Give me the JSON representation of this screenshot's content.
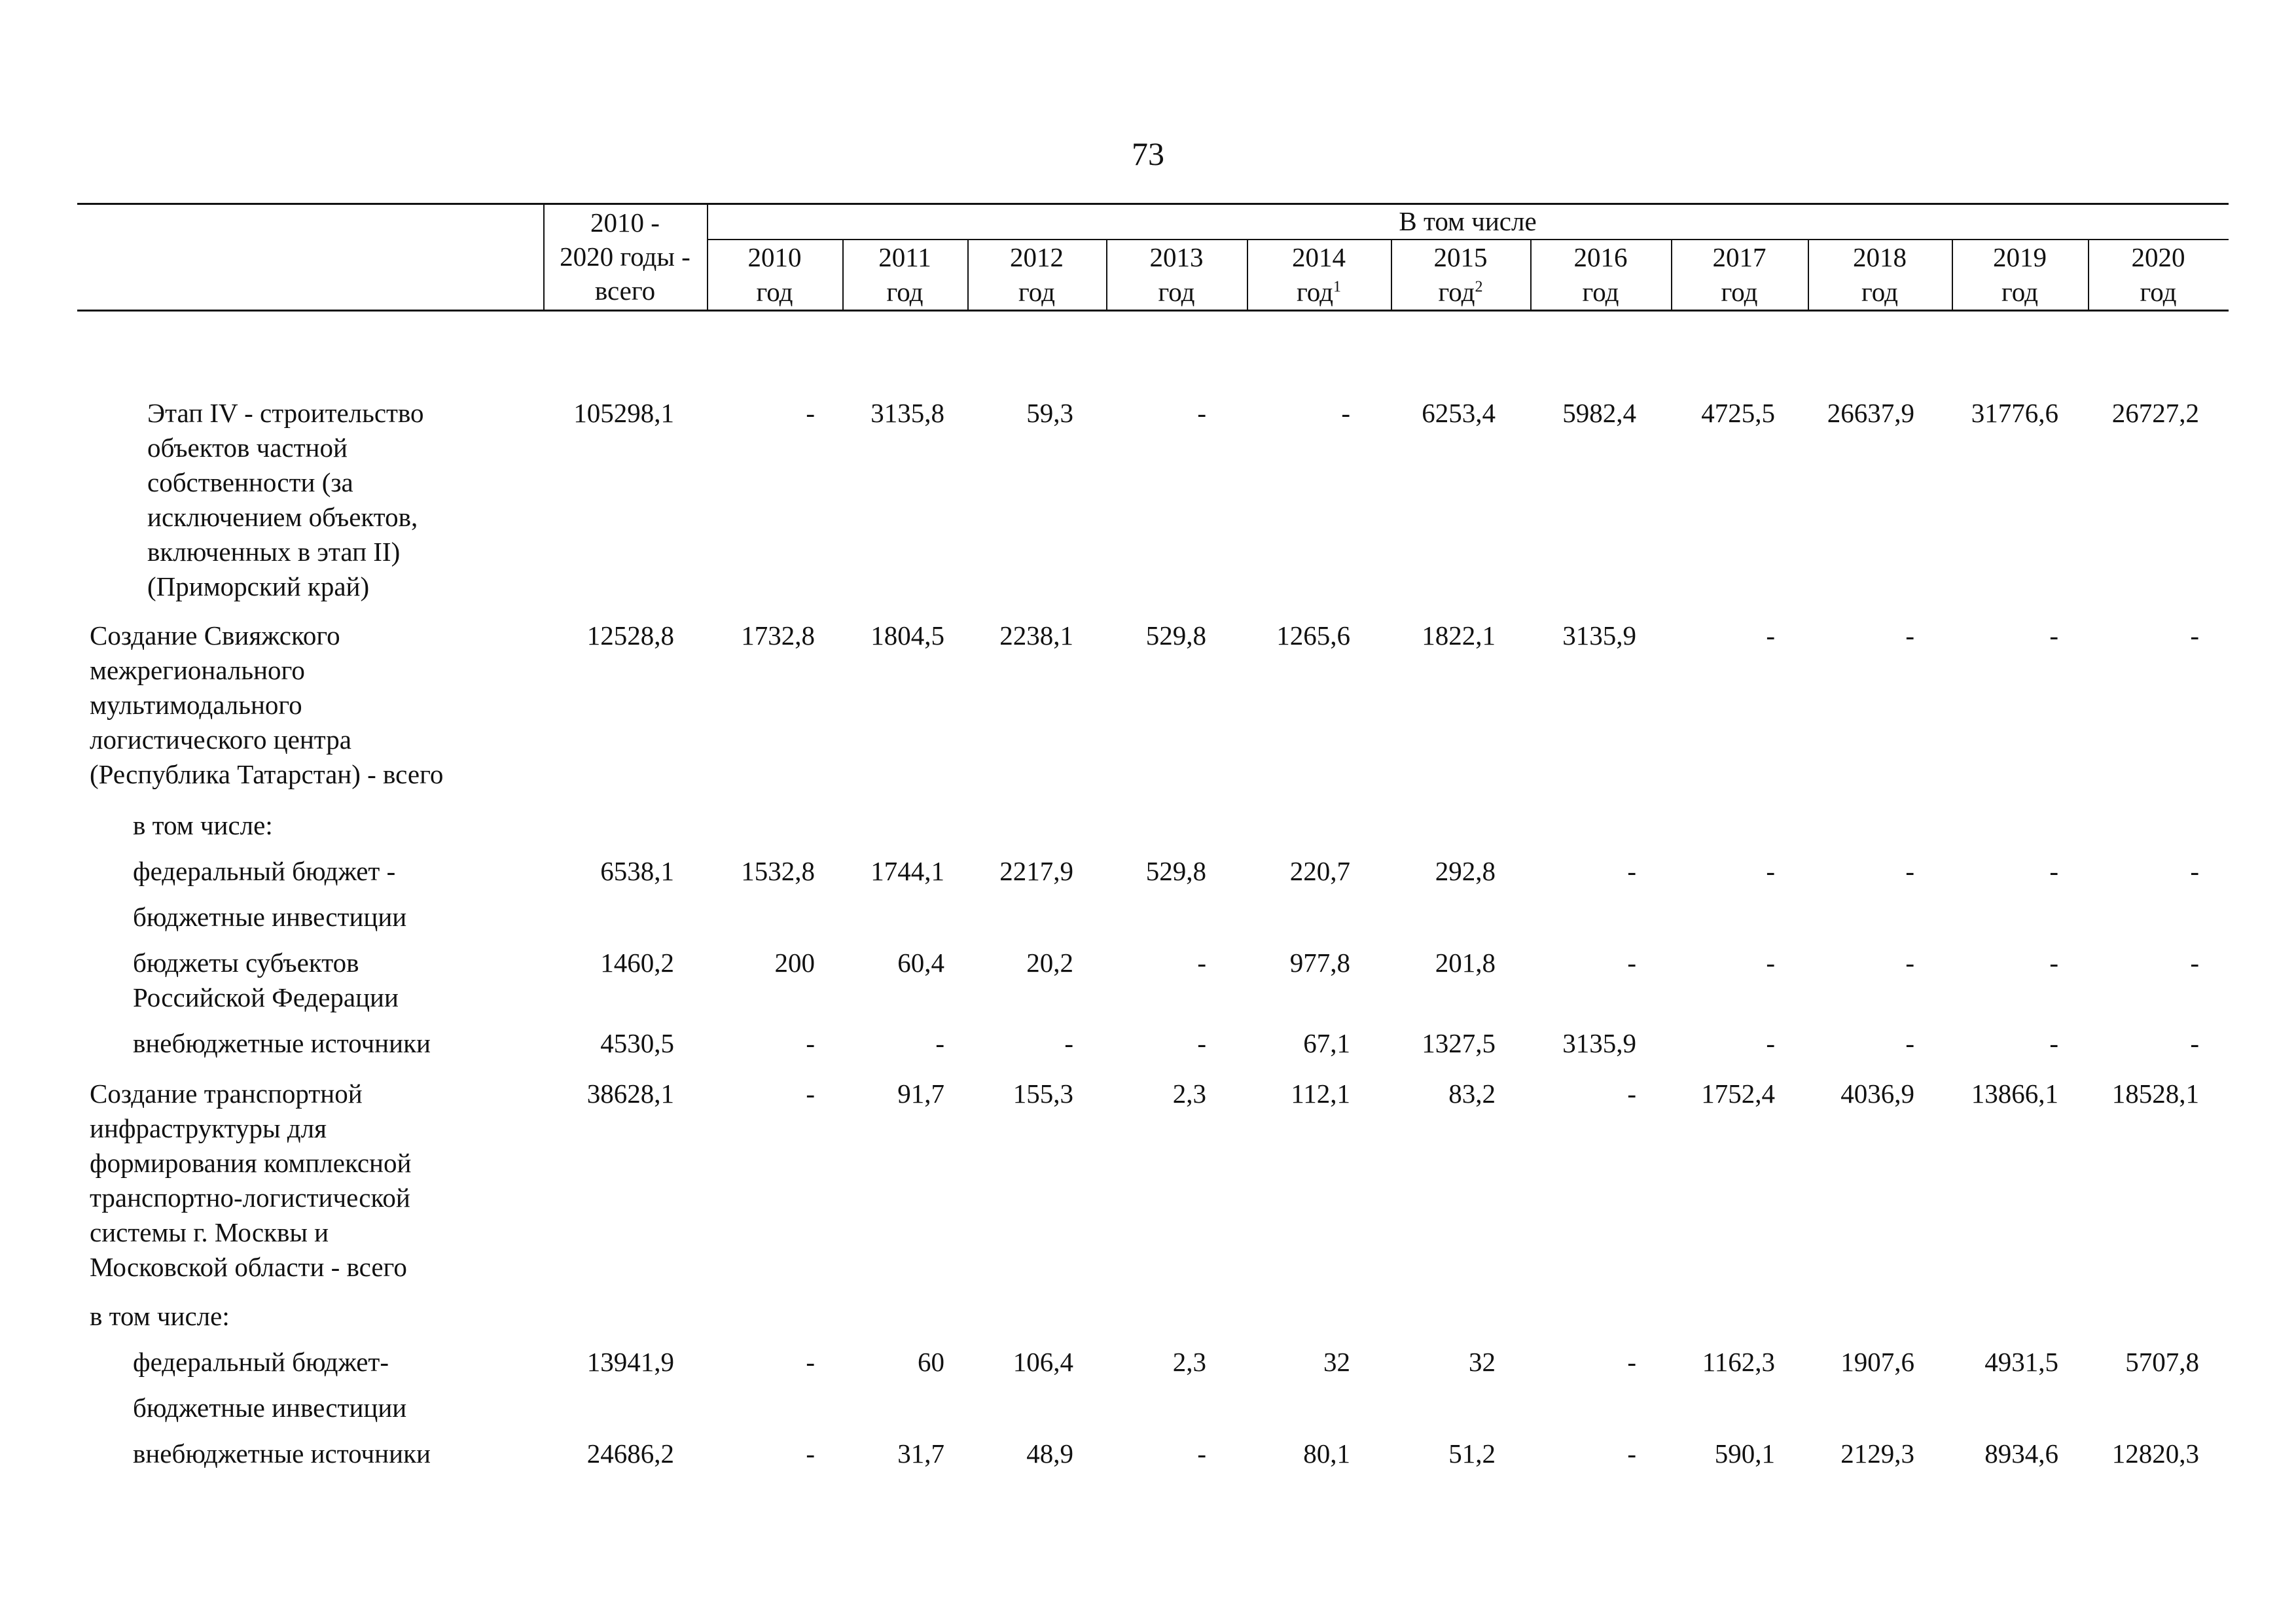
{
  "page_number": "73",
  "header": {
    "total_col": [
      "2010 -",
      "2020 годы -",
      "всего"
    ],
    "group_label": "В том числе",
    "years": [
      {
        "year": "2010",
        "unit": "год",
        "sup": ""
      },
      {
        "year": "2011",
        "unit": "год",
        "sup": ""
      },
      {
        "year": "2012",
        "unit": "год",
        "sup": ""
      },
      {
        "year": "2013",
        "unit": "год",
        "sup": ""
      },
      {
        "year": "2014",
        "unit": "год",
        "sup": "1"
      },
      {
        "year": "2015",
        "unit": "год",
        "sup": "2"
      },
      {
        "year": "2016",
        "unit": "год",
        "sup": ""
      },
      {
        "year": "2017",
        "unit": "год",
        "sup": ""
      },
      {
        "year": "2018",
        "unit": "год",
        "sup": ""
      },
      {
        "year": "2019",
        "unit": "год",
        "sup": ""
      },
      {
        "year": "2020",
        "unit": "год",
        "sup": ""
      }
    ]
  },
  "rows": [
    {
      "label": [
        "Этап IV - строительство",
        "объектов частной",
        "собственности (за",
        "исключением объектов,",
        "включенных в этап II)",
        "(Приморский край)"
      ],
      "values": [
        "105298,1",
        "-",
        "3135,8",
        "59,3",
        "-",
        "-",
        "6253,4",
        "5982,4",
        "4725,5",
        "26637,9",
        "31776,6",
        "26727,2"
      ]
    },
    {
      "label": [
        "Создание Свияжского",
        "межрегионального",
        "мультимодального",
        "логистического центра",
        "(Республика Татарстан) - всего"
      ],
      "values": [
        "12528,8",
        "1732,8",
        "1804,5",
        "2238,1",
        "529,8",
        "1265,6",
        "1822,1",
        "3135,9",
        "-",
        "-",
        "-",
        "-"
      ]
    },
    {
      "label": [
        "в том числе:"
      ],
      "values": []
    },
    {
      "label": [
        "федеральный бюджет -",
        "бюджетные инвестиции"
      ],
      "values": [
        "6538,1",
        "1532,8",
        "1744,1",
        "2217,9",
        "529,8",
        "220,7",
        "292,8",
        "-",
        "-",
        "-",
        "-",
        "-"
      ]
    },
    {
      "label": [
        "бюджеты субъектов",
        "Российской Федерации"
      ],
      "values": [
        "1460,2",
        "200",
        "60,4",
        "20,2",
        "-",
        "977,8",
        "201,8",
        "-",
        "-",
        "-",
        "-",
        "-"
      ]
    },
    {
      "label": [
        "внебюджетные источники"
      ],
      "values": [
        "4530,5",
        "-",
        "-",
        "-",
        "-",
        "67,1",
        "1327,5",
        "3135,9",
        "-",
        "-",
        "-",
        "-"
      ]
    },
    {
      "label": [
        "Создание транспортной",
        "инфраструктуры для",
        "формирования комплексной",
        "транспортно-логистической",
        "системы г. Москвы и",
        "Московской области - всего"
      ],
      "values": [
        "38628,1",
        "-",
        "91,7",
        "155,3",
        "2,3",
        "112,1",
        "83,2",
        "-",
        "1752,4",
        "4036,9",
        "13866,1",
        "18528,1"
      ]
    },
    {
      "label": [
        "в том числе:"
      ],
      "values": []
    },
    {
      "label": [
        "федеральный бюджет-",
        "бюджетные инвестиции"
      ],
      "values": [
        "13941,9",
        "-",
        "60",
        "106,4",
        "2,3",
        "32",
        "32",
        "-",
        "1162,3",
        "1907,6",
        "4931,5",
        "5707,8"
      ]
    },
    {
      "label": [
        "внебюджетные источники"
      ],
      "values": [
        "24686,2",
        "-",
        "31,7",
        "48,9",
        "-",
        "80,1",
        "51,2",
        "-",
        "590,1",
        "2129,3",
        "8934,6",
        "12820,3"
      ]
    }
  ]
}
